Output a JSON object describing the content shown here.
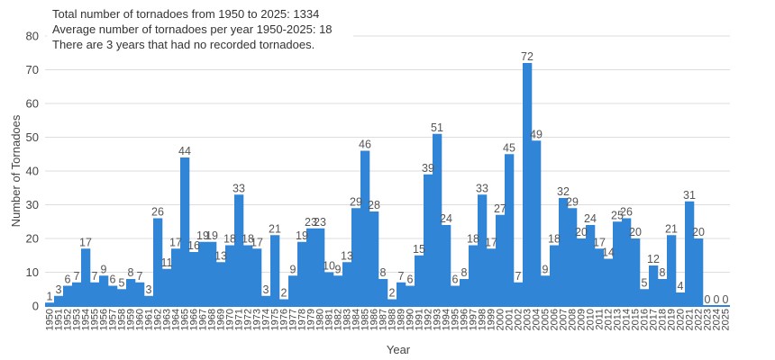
{
  "annotations": [
    "Total number of tornadoes from 1950 to 2025: 1334",
    "Average number of tornadoes per year 1950-2025: 18",
    "There are 3 years that had no recorded tornadoes."
  ],
  "colors": {
    "bar": "#3085d6",
    "grid": "#dddddd",
    "text": "#444444"
  },
  "chart_data": {
    "type": "bar",
    "title": "",
    "xlabel": "Year",
    "ylabel": "Number of Tornadoes",
    "ylim": [
      0,
      80
    ],
    "yticks": [
      0,
      10,
      20,
      30,
      40,
      50,
      60,
      70,
      80
    ],
    "grid": true,
    "legend": "none",
    "categories": [
      "1950",
      "1951",
      "1952",
      "1953",
      "1954",
      "1955",
      "1956",
      "1957",
      "1958",
      "1959",
      "1960",
      "1961",
      "1962",
      "1963",
      "1964",
      "1965",
      "1966",
      "1967",
      "1968",
      "1969",
      "1970",
      "1971",
      "1972",
      "1973",
      "1974",
      "1975",
      "1976",
      "1977",
      "1978",
      "1979",
      "1980",
      "1981",
      "1982",
      "1983",
      "1984",
      "1985",
      "1986",
      "1987",
      "1988",
      "1989",
      "1990",
      "1991",
      "1992",
      "1993",
      "1994",
      "1995",
      "1996",
      "1997",
      "1998",
      "1999",
      "2000",
      "2001",
      "2002",
      "2003",
      "2004",
      "2005",
      "2006",
      "2007",
      "2008",
      "2009",
      "2010",
      "2011",
      "2012",
      "2013",
      "2014",
      "2015",
      "2016",
      "2017",
      "2018",
      "2019",
      "2020",
      "2021",
      "2022",
      "2023",
      "2024",
      "2025"
    ],
    "values": [
      1,
      3,
      6,
      7,
      17,
      7,
      9,
      6,
      5,
      8,
      7,
      3,
      26,
      11,
      17,
      44,
      16,
      19,
      19,
      13,
      18,
      33,
      18,
      17,
      3,
      21,
      2,
      9,
      19,
      23,
      23,
      10,
      9,
      13,
      29,
      46,
      28,
      8,
      2,
      7,
      6,
      15,
      39,
      51,
      24,
      6,
      8,
      18,
      33,
      17,
      27,
      45,
      7,
      72,
      49,
      9,
      18,
      32,
      29,
      20,
      24,
      17,
      14,
      25,
      26,
      20,
      5,
      12,
      8,
      21,
      4,
      31,
      20,
      0,
      0,
      0
    ],
    "data_labels": [
      "1",
      "3",
      "6",
      "7",
      "17",
      "7",
      "9",
      "6",
      "5",
      "8",
      "7",
      "3",
      "26",
      "11",
      "17",
      "44",
      "16",
      "19",
      "19",
      "13",
      "18",
      "33",
      "18",
      "17",
      "3",
      "21",
      "2",
      "9",
      "19",
      "23",
      "23",
      "10",
      "9",
      "13",
      "29",
      "46",
      "28",
      "8",
      "2",
      "7",
      "6",
      "15",
      "39",
      "51",
      "24",
      "6",
      "8",
      "18",
      "33",
      "17",
      "27",
      "45",
      "7",
      "72",
      "49",
      "9",
      "18",
      "32",
      "29",
      "20",
      "24",
      "17",
      "14",
      "25",
      "26",
      "20",
      "5",
      "12",
      "8",
      "21",
      "4",
      "31",
      "20",
      "0",
      "0",
      "0"
    ]
  }
}
